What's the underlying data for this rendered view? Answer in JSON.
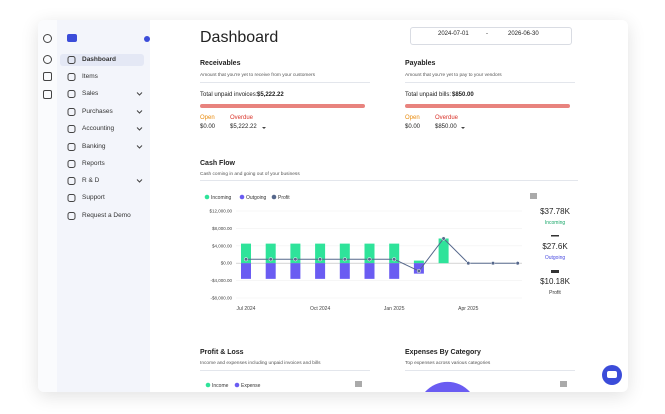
{
  "sidebar": {
    "items": [
      "Dashboard",
      "Items",
      "Sales",
      "Purchases",
      "Accounting",
      "Banking",
      "Reports",
      "R & D",
      "Support",
      "Request a Demo"
    ]
  },
  "header": {
    "title": "Dashboard",
    "date_from": "2024-07-01",
    "date_sep": "-",
    "date_to": "2026-06-30"
  },
  "receivables": {
    "title": "Receivables",
    "subtitle": "Amount that you're yet to receive from your customers",
    "total_label": "Total unpaid invoices:",
    "total": "$5,222.22",
    "open_label": "Open",
    "open": "$0.00",
    "overdue_label": "Overdue",
    "overdue": "$5,222.22"
  },
  "payables": {
    "title": "Payables",
    "subtitle": "Amount that you're yet to pay to your vendors",
    "total_label": "Total unpaid bills:",
    "total": "$850.00",
    "open_label": "Open",
    "open": "$0.00",
    "overdue_label": "Overdue",
    "overdue": "$850.00"
  },
  "cash_flow": {
    "title": "Cash Flow",
    "subtitle": "Cash coming in and going out of your business",
    "chart": {
      "type": "bar",
      "categories": [
        "Jul 2024",
        null,
        null,
        "Oct 2024",
        null,
        null,
        "Jan 2025",
        null,
        null,
        "Apr 2025",
        null,
        null
      ],
      "series": [
        {
          "name": "Incoming",
          "color": "#2fe39a",
          "values": [
            4500,
            4500,
            4500,
            4500,
            4500,
            4500,
            4500,
            600,
            5680,
            0,
            0,
            0
          ]
        },
        {
          "name": "Outgoing",
          "color": "#6a5cf2",
          "values": [
            -3600,
            -3600,
            -3600,
            -3600,
            -3600,
            -3600,
            -3600,
            -2400,
            0,
            0,
            0,
            0
          ]
        },
        {
          "name": "Profit",
          "color": "#56688c",
          "values": [
            900,
            900,
            900,
            900,
            900,
            900,
            900,
            -1800,
            5680,
            0,
            0,
            0
          ]
        }
      ],
      "ylim": [
        -8000,
        12000
      ],
      "yticks": [
        {
          "value": 12000,
          "label": "$12,000.00"
        },
        {
          "value": 8000,
          "label": "$8,000.00"
        },
        {
          "value": 4000,
          "label": "$4,000.00"
        },
        {
          "value": 0,
          "label": "$0.00"
        },
        {
          "value": -4000,
          "label": "-$4,000.00"
        },
        {
          "value": -8000,
          "label": "-$8,000.00"
        }
      ]
    },
    "summary": [
      {
        "value": "$37.78K",
        "label": "Incoming"
      },
      {
        "value": "$27.6K",
        "label": "Outgoing"
      },
      {
        "value": "$10.18K",
        "label": "Profit"
      }
    ]
  },
  "profit_loss": {
    "title": "Profit & Loss",
    "subtitle": "Income and expenses including unpaid invoices and bills",
    "legend": [
      "Income",
      "Expense"
    ]
  },
  "expenses": {
    "title": "Expenses By Category",
    "subtitle": "Top expenses across various categories"
  }
}
